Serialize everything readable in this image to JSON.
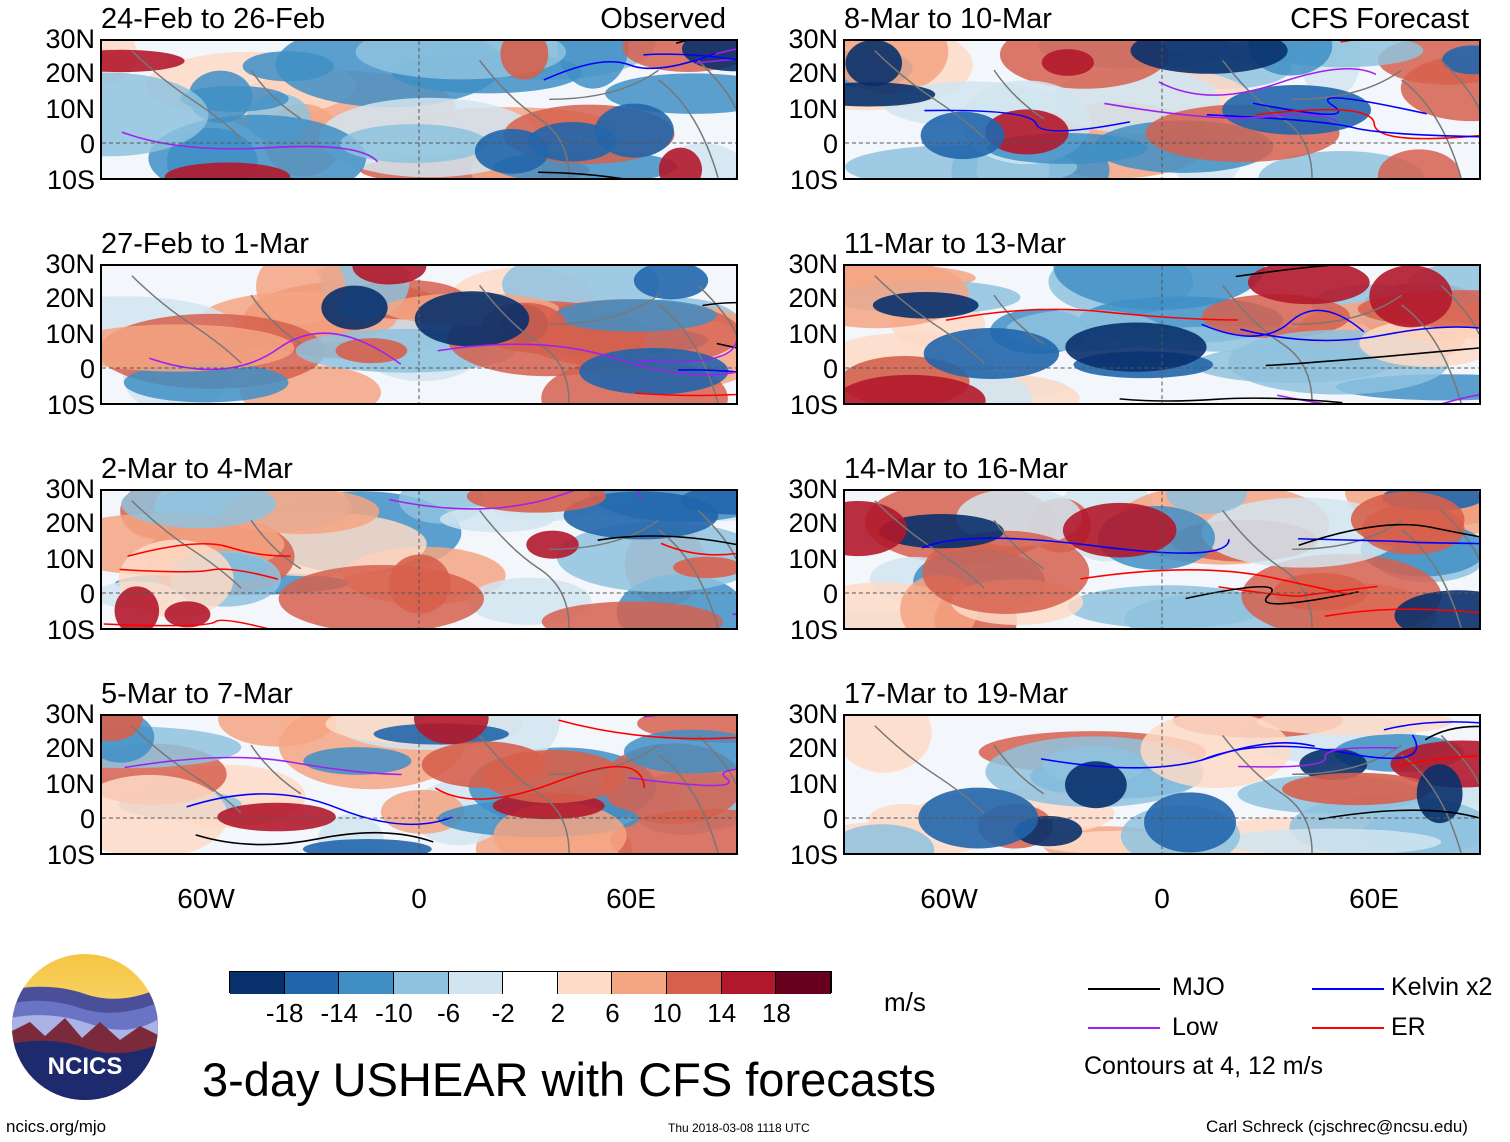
{
  "panels_left": [
    {
      "title": "24-Feb to 26-Feb",
      "tag": "Observed"
    },
    {
      "title": "27-Feb to 1-Mar",
      "tag": ""
    },
    {
      "title": "2-Mar to 4-Mar",
      "tag": ""
    },
    {
      "title": "5-Mar to 7-Mar",
      "tag": ""
    }
  ],
  "panels_right": [
    {
      "title": "8-Mar to 10-Mar",
      "tag": "CFS Forecast"
    },
    {
      "title": "11-Mar to 13-Mar",
      "tag": ""
    },
    {
      "title": "14-Mar to 16-Mar",
      "tag": ""
    },
    {
      "title": "17-Mar to 19-Mar",
      "tag": ""
    }
  ],
  "lat_labels": [
    "30N",
    "20N",
    "10N",
    "0",
    "10S"
  ],
  "lon_labels": [
    "60W",
    "0",
    "60E"
  ],
  "colorbar": {
    "colors": [
      "#08306b",
      "#2166ac",
      "#3f8fc5",
      "#8ec2de",
      "#d1e5f0",
      "#ffffff",
      "#fddbc7",
      "#f4a582",
      "#d6604d",
      "#b2182b",
      "#67001f"
    ],
    "labels": [
      "-18",
      "-14",
      "-10",
      "-6",
      "-2",
      "2",
      "6",
      "10",
      "14",
      "18"
    ],
    "units": "m/s"
  },
  "legend": {
    "items": [
      {
        "label": "MJO",
        "color": "#000000"
      },
      {
        "label": "Kelvin x2",
        "color": "#0000ff"
      },
      {
        "label": "Low",
        "color": "#a020f0"
      },
      {
        "label": "ER",
        "color": "#ff0000"
      }
    ],
    "note": "Contours at 4, 12 m/s"
  },
  "logo": {
    "text": "NCICS"
  },
  "main_title": "3-day USHEAR with CFS forecasts",
  "footer": {
    "left": "ncics.org/mjo",
    "center": "Thu 2018-03-08 1118 UTC",
    "right": "Carl Schreck (cjschrec@ncsu.edu)"
  }
}
